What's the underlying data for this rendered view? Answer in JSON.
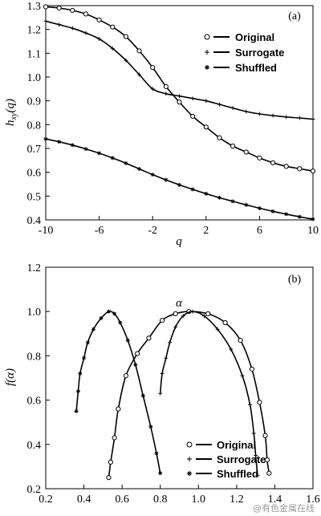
{
  "chart_data": [
    {
      "type": "line",
      "panel_label": "(a)",
      "xlabel": "q",
      "ylabel": "h_xy(q)",
      "ylabel_parts": {
        "base": "h",
        "sub": "xy",
        "suffix": "(q)"
      },
      "xlim": [
        -10,
        10
      ],
      "ylim": [
        0.4,
        1.3
      ],
      "xticks": [
        "-10",
        "-6",
        "-2",
        "2",
        "6",
        "10"
      ],
      "xtick_values": [
        -10,
        -6,
        -2,
        2,
        6,
        10
      ],
      "yticks": [
        "0.4",
        "0.5",
        "0.6",
        "0.7",
        "0.8",
        "0.9",
        "1.0",
        "1.1",
        "1.2",
        "1.3"
      ],
      "ytick_values": [
        0.4,
        0.5,
        0.6,
        0.7,
        0.8,
        0.9,
        1.0,
        1.1,
        1.2,
        1.3
      ],
      "legend_position": "top-right",
      "series": [
        {
          "name": "Original",
          "marker": "circle",
          "x": [
            -10,
            -9,
            -8,
            -7,
            -6,
            -5,
            -4,
            -3,
            -2,
            -1,
            0,
            1,
            2,
            3,
            4,
            5,
            6,
            7,
            8,
            9,
            10
          ],
          "y": [
            1.295,
            1.29,
            1.28,
            1.265,
            1.24,
            1.21,
            1.17,
            1.11,
            1.04,
            0.96,
            0.895,
            0.835,
            0.79,
            0.745,
            0.71,
            0.685,
            0.66,
            0.64,
            0.625,
            0.615,
            0.605
          ]
        },
        {
          "name": "Surrogate",
          "marker": "plus",
          "x": [
            -10,
            -9,
            -8,
            -7,
            -6,
            -5,
            -4,
            -3,
            -2,
            -1,
            0,
            1,
            2,
            3,
            4,
            5,
            6,
            7,
            8,
            9,
            10
          ],
          "y": [
            1.235,
            1.22,
            1.205,
            1.185,
            1.16,
            1.12,
            1.07,
            1.01,
            0.95,
            0.93,
            0.92,
            0.91,
            0.9,
            0.885,
            0.87,
            0.855,
            0.845,
            0.838,
            0.832,
            0.828,
            0.823
          ]
        },
        {
          "name": "Shuffled",
          "marker": "asterisk",
          "x": [
            -10,
            -9,
            -8,
            -7,
            -6,
            -5,
            -4,
            -3,
            -2,
            -1,
            0,
            1,
            2,
            3,
            4,
            5,
            6,
            7,
            8,
            9,
            10
          ],
          "y": [
            0.74,
            0.728,
            0.714,
            0.698,
            0.68,
            0.66,
            0.638,
            0.614,
            0.59,
            0.568,
            0.547,
            0.528,
            0.51,
            0.493,
            0.478,
            0.463,
            0.449,
            0.436,
            0.424,
            0.413,
            0.403
          ]
        }
      ]
    },
    {
      "type": "line",
      "panel_label": "(b)",
      "xlabel": "α",
      "ylabel": "f(α)",
      "xlim": [
        0.2,
        1.6
      ],
      "ylim": [
        0.2,
        1.2
      ],
      "xticks": [
        "0.2",
        "0.4",
        "0.6",
        "0.8",
        "1.0",
        "1.2",
        "1.4",
        "1.6"
      ],
      "xtick_values": [
        0.2,
        0.4,
        0.6,
        0.8,
        1.0,
        1.2,
        1.4,
        1.6
      ],
      "yticks": [
        "0.2",
        "0.4",
        "0.6",
        "0.8",
        "1.0",
        "1.2"
      ],
      "ytick_values": [
        0.2,
        0.4,
        0.6,
        0.8,
        1.0,
        1.2
      ],
      "legend_position": "bottom-right",
      "series": [
        {
          "name": "Original",
          "marker": "circle",
          "x": [
            0.53,
            0.54,
            0.56,
            0.58,
            0.62,
            0.68,
            0.74,
            0.81,
            0.88,
            0.95,
            1.05,
            1.14,
            1.22,
            1.28,
            1.32,
            1.35,
            1.36,
            1.37
          ],
          "y": [
            0.25,
            0.32,
            0.43,
            0.56,
            0.71,
            0.81,
            0.88,
            0.96,
            0.99,
            1.0,
            0.99,
            0.95,
            0.87,
            0.74,
            0.59,
            0.44,
            0.33,
            0.27
          ]
        },
        {
          "name": "Surrogate",
          "marker": "plus",
          "x": [
            0.8,
            0.81,
            0.83,
            0.85,
            0.88,
            0.92,
            0.97,
            1.03,
            1.1,
            1.17,
            1.23,
            1.27,
            1.29,
            1.3,
            1.31
          ],
          "y": [
            0.63,
            0.72,
            0.79,
            0.86,
            0.93,
            0.98,
            1.0,
            0.98,
            0.92,
            0.83,
            0.71,
            0.58,
            0.45,
            0.35,
            0.26
          ]
        },
        {
          "name": "Shuffled",
          "marker": "asterisk",
          "x": [
            0.36,
            0.37,
            0.38,
            0.4,
            0.42,
            0.45,
            0.49,
            0.53,
            0.56,
            0.59,
            0.63,
            0.67,
            0.71,
            0.75,
            0.78,
            0.8
          ],
          "y": [
            0.55,
            0.64,
            0.72,
            0.79,
            0.86,
            0.92,
            0.97,
            1.0,
            0.99,
            0.95,
            0.87,
            0.76,
            0.62,
            0.48,
            0.36,
            0.27
          ]
        }
      ]
    }
  ],
  "watermark": "@有色金属在线"
}
